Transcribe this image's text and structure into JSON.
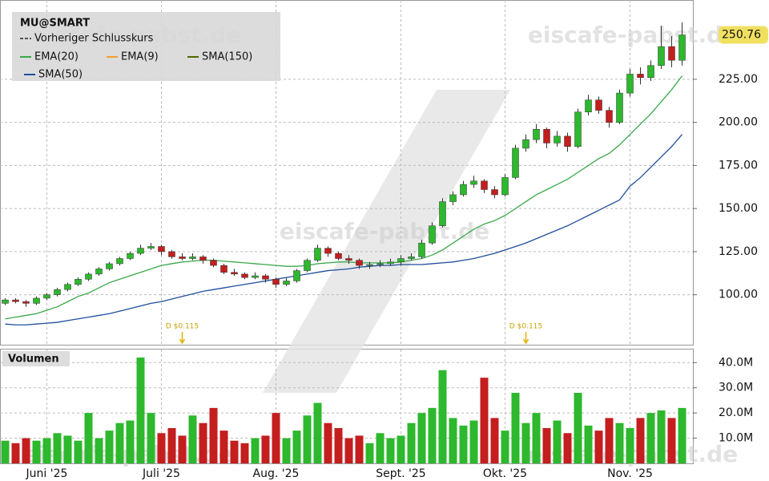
{
  "watermark": "eiscafe-pabst.de",
  "chart_data": [
    {
      "type": "candlestick",
      "title": "MU@SMART",
      "categories": [
        null,
        null,
        null,
        null,
        "Juni '25",
        null,
        null,
        null,
        null,
        null,
        null,
        null,
        null,
        null,
        null,
        "Juli '25",
        null,
        null,
        null,
        null,
        null,
        null,
        null,
        null,
        null,
        null,
        "Aug. '25",
        null,
        null,
        null,
        null,
        null,
        null,
        null,
        null,
        null,
        null,
        null,
        "Sept. '25",
        null,
        null,
        null,
        null,
        null,
        null,
        null,
        null,
        null,
        "Okt. '25",
        null,
        null,
        null,
        null,
        null,
        null,
        null,
        null,
        null,
        null,
        null,
        "Nov. '25",
        null,
        null,
        null,
        null,
        null
      ],
      "open": [
        95,
        97,
        96,
        95,
        98,
        100,
        103,
        106,
        109,
        112,
        115,
        118,
        121,
        124,
        127,
        128,
        125,
        122,
        121,
        122,
        120,
        117,
        113,
        112,
        110,
        111,
        109,
        106,
        108,
        114,
        120,
        127,
        124,
        121,
        120,
        117,
        117.5,
        118,
        119,
        121,
        122,
        130,
        140,
        154,
        158,
        164,
        166,
        161,
        158,
        168,
        185,
        190,
        196,
        188,
        192,
        186,
        206,
        213,
        207,
        200,
        217,
        228,
        226,
        233,
        244,
        236
      ],
      "high": [
        98,
        98,
        97,
        99,
        101,
        104,
        107,
        110,
        113,
        116,
        119,
        122,
        125,
        129,
        130,
        129,
        126,
        124,
        124,
        123,
        121,
        118,
        115,
        113,
        113,
        112,
        110,
        110,
        115,
        121,
        129,
        128,
        125,
        123,
        121,
        119,
        120,
        121,
        123,
        124,
        132,
        142,
        156,
        160,
        166,
        169,
        167,
        163,
        170,
        187,
        193,
        199,
        197,
        195,
        194,
        208,
        216,
        215,
        209,
        219,
        231,
        232,
        236,
        256,
        250,
        258
      ],
      "low": [
        94,
        95,
        93,
        94,
        97,
        99,
        102,
        105,
        108,
        111,
        114,
        117,
        120,
        123,
        126,
        123,
        121,
        120,
        120,
        118,
        116,
        112,
        111,
        109,
        109,
        107,
        104,
        105,
        107,
        113,
        119,
        122,
        120,
        118,
        115,
        115,
        116,
        117,
        117,
        120,
        121,
        129,
        139,
        152,
        157,
        162,
        159,
        156,
        157,
        167,
        183,
        188,
        185,
        186,
        183,
        185,
        204,
        205,
        197,
        199,
        215,
        222,
        224,
        231,
        232,
        233
      ],
      "close": [
        97,
        96,
        95,
        98,
        100,
        103,
        106,
        109,
        112,
        115,
        118,
        121,
        124,
        127,
        128,
        125,
        122,
        121,
        122,
        120,
        117,
        113,
        112,
        110,
        111,
        109,
        106,
        108,
        114,
        120,
        127,
        124,
        121,
        120,
        117,
        117.5,
        118,
        119,
        121,
        122,
        130,
        140,
        154,
        158,
        164,
        166,
        161,
        158,
        168,
        185,
        190,
        196,
        188,
        192,
        186,
        206,
        213,
        207,
        200,
        217,
        228,
        226,
        233,
        244,
        236,
        250.76
      ],
      "up_color": "#2db82d",
      "down_color": "#c41e1e",
      "series": [
        {
          "name": "EMA(20)",
          "color": "#3aa84a",
          "values": [
            86,
            87,
            88,
            89,
            91,
            93,
            96,
            99,
            101,
            104,
            107,
            109,
            111,
            113,
            115,
            117,
            118,
            119,
            119.5,
            120,
            120,
            119.5,
            119,
            118.5,
            118,
            117.5,
            117,
            116.5,
            116.5,
            117,
            118,
            118.5,
            119,
            119,
            118.5,
            118.5,
            118.5,
            118.5,
            119,
            120,
            121,
            123,
            126,
            130,
            134,
            138,
            141,
            143,
            146,
            150,
            154,
            158,
            161,
            164,
            167,
            171,
            175,
            179,
            182,
            187,
            193,
            199,
            205,
            212,
            219,
            227
          ]
        },
        {
          "name": "SMA(50)",
          "color": "#1f4e9c",
          "values": [
            83,
            82.5,
            82.5,
            83,
            83.5,
            84,
            85,
            86,
            87,
            88,
            89,
            90.5,
            92,
            93.5,
            95,
            96,
            97.5,
            99,
            100.5,
            102,
            103,
            104,
            105,
            106,
            107,
            108,
            109,
            110,
            111,
            112,
            113,
            114,
            114.5,
            115,
            116,
            116.5,
            117,
            117,
            117.5,
            117.5,
            117.5,
            118,
            118.5,
            119,
            120,
            121,
            122.5,
            124,
            126,
            128,
            130,
            132.5,
            135,
            137.5,
            140,
            143,
            146,
            149,
            152,
            155,
            163,
            168,
            174,
            180,
            186,
            193
          ]
        }
      ],
      "legend_extra": [
        {
          "name": "Vorheriger Schlusskurs",
          "color": "#555555"
        },
        {
          "name": "EMA(9)",
          "color": "#f0a030"
        },
        {
          "name": "SMA(150)",
          "color": "#4f6a00"
        }
      ],
      "last_price": 250.76,
      "annotations": [
        {
          "index": 17,
          "label": "D $0.115"
        },
        {
          "index": 50,
          "label": "D $0.115"
        }
      ],
      "ylim": [
        71,
        271
      ],
      "yticks": [
        {
          "value": 100,
          "label": "100.00"
        },
        {
          "value": 125,
          "label": "125.00"
        },
        {
          "value": 150,
          "label": "150.00"
        },
        {
          "value": 175,
          "label": "175.00"
        },
        {
          "value": 200,
          "label": "200.00"
        },
        {
          "value": 225,
          "label": "225.00"
        }
      ],
      "grid": true
    },
    {
      "type": "bar",
      "title": "Volumen",
      "values": [
        9000000,
        8000000,
        10000000,
        9000000,
        10000000,
        12000000,
        11000000,
        9000000,
        20000000,
        10000000,
        13000000,
        16000000,
        17000000,
        42000000,
        20000000,
        12000000,
        14000000,
        11000000,
        19000000,
        16000000,
        22000000,
        13000000,
        9000000,
        8000000,
        10000000,
        11000000,
        20000000,
        10000000,
        13000000,
        19000000,
        24000000,
        16000000,
        14000000,
        10000000,
        11000000,
        8000000,
        12000000,
        10000000,
        11000000,
        16000000,
        20000000,
        22000000,
        37000000,
        18000000,
        15000000,
        17000000,
        34000000,
        18000000,
        13000000,
        28000000,
        16000000,
        20000000,
        14000000,
        17000000,
        12000000,
        28000000,
        15000000,
        13000000,
        18000000,
        16000000,
        14000000,
        18000000,
        20000000,
        21000000,
        18000000,
        22000000
      ],
      "ylim": [
        0,
        45500000
      ],
      "yticks": [
        {
          "value": 10000000,
          "label": "10.0M"
        },
        {
          "value": 20000000,
          "label": "20.0M"
        },
        {
          "value": 30000000,
          "label": "30.0M"
        },
        {
          "value": 40000000,
          "label": "40.0M"
        }
      ],
      "grid": true
    }
  ]
}
